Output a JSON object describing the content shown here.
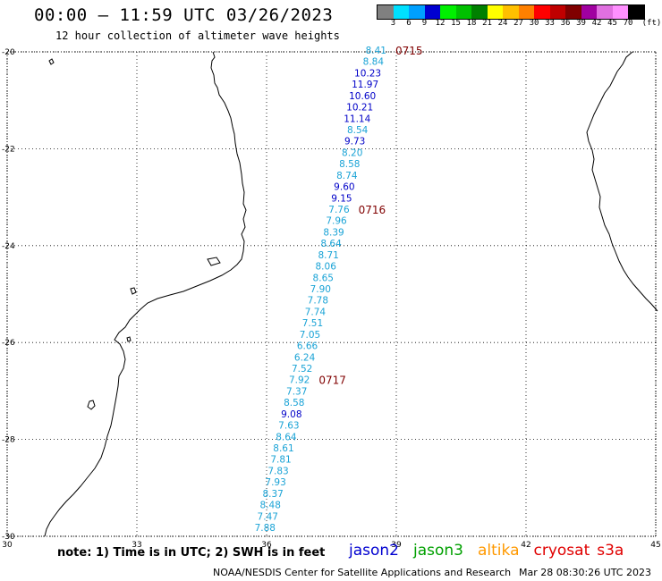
{
  "header": {
    "title": "00:00 – 11:59 UTC 03/26/2023",
    "subtitle": "12 hour collection of altimeter wave heights"
  },
  "legend": {
    "unit": "(ft)",
    "bins": [
      {
        "label": "3",
        "color": "#808080"
      },
      {
        "label": "6",
        "color": "#00e0ff"
      },
      {
        "label": "9",
        "color": "#00a0ff"
      },
      {
        "label": "12",
        "color": "#0000d0"
      },
      {
        "label": "15",
        "color": "#00f000"
      },
      {
        "label": "18",
        "color": "#00c000"
      },
      {
        "label": "21",
        "color": "#008000"
      },
      {
        "label": "24",
        "color": "#ffff00"
      },
      {
        "label": "27",
        "color": "#ffc000"
      },
      {
        "label": "30",
        "color": "#ff8000"
      },
      {
        "label": "33",
        "color": "#ff0000"
      },
      {
        "label": "36",
        "color": "#c00000"
      },
      {
        "label": "39",
        "color": "#800000"
      },
      {
        "label": "42",
        "color": "#a000a0"
      },
      {
        "label": "45",
        "color": "#e070e0"
      },
      {
        "label": "70",
        "color": "#ff90ff"
      },
      {
        "label": "",
        "color": "#000000"
      }
    ]
  },
  "map": {
    "lon_range": [
      30,
      45
    ],
    "lat_range": [
      -30,
      -20
    ],
    "x_ticks": [
      "30",
      "33",
      "36",
      "39",
      "42",
      "45"
    ],
    "y_ticks": [
      "-20",
      "-22",
      "-24",
      "-26",
      "-28",
      "-30"
    ],
    "grid": "dotted"
  },
  "track": {
    "color_light": "#1aa3d6",
    "color_dark": "#0000c8",
    "time_color": "#800000",
    "times": [
      {
        "label": "0715",
        "row": 0
      },
      {
        "label": "0716",
        "row": 14
      },
      {
        "label": "0717",
        "row": 29
      }
    ],
    "readings": [
      {
        "v": "8.41",
        "dark": false
      },
      {
        "v": "8.84",
        "dark": false
      },
      {
        "v": "10.23",
        "dark": true
      },
      {
        "v": "11.97",
        "dark": true
      },
      {
        "v": "10.60",
        "dark": true
      },
      {
        "v": "10.21",
        "dark": true
      },
      {
        "v": "11.14",
        "dark": true
      },
      {
        "v": "8.54",
        "dark": false
      },
      {
        "v": "9.73",
        "dark": true
      },
      {
        "v": "8.20",
        "dark": false
      },
      {
        "v": "8.58",
        "dark": false
      },
      {
        "v": "8.74",
        "dark": false
      },
      {
        "v": "9.60",
        "dark": true
      },
      {
        "v": "9.15",
        "dark": true
      },
      {
        "v": "7.76",
        "dark": false
      },
      {
        "v": "7.96",
        "dark": false
      },
      {
        "v": "8.39",
        "dark": false
      },
      {
        "v": "8.64",
        "dark": false
      },
      {
        "v": "8.71",
        "dark": false
      },
      {
        "v": "8.06",
        "dark": false
      },
      {
        "v": "8.65",
        "dark": false
      },
      {
        "v": "7.90",
        "dark": false
      },
      {
        "v": "7.78",
        "dark": false
      },
      {
        "v": "7.74",
        "dark": false
      },
      {
        "v": "7.51",
        "dark": false
      },
      {
        "v": "7.05",
        "dark": false
      },
      {
        "v": "6.66",
        "dark": false
      },
      {
        "v": "6.24",
        "dark": false
      },
      {
        "v": "7.52",
        "dark": false
      },
      {
        "v": "7.92",
        "dark": false
      },
      {
        "v": "7.37",
        "dark": false
      },
      {
        "v": "8.58",
        "dark": false
      },
      {
        "v": "9.08",
        "dark": true
      },
      {
        "v": "7.63",
        "dark": false
      },
      {
        "v": "8.64",
        "dark": false
      },
      {
        "v": "8.61",
        "dark": false
      },
      {
        "v": "7.81",
        "dark": false
      },
      {
        "v": "7.83",
        "dark": false
      },
      {
        "v": "7.93",
        "dark": false
      },
      {
        "v": "8.37",
        "dark": false
      },
      {
        "v": "8.48",
        "dark": false
      },
      {
        "v": "7.47",
        "dark": false
      },
      {
        "v": "7.88",
        "dark": false
      }
    ]
  },
  "footer": {
    "note": "note: 1) Time is in UTC; 2) SWH is in feet",
    "satellites": [
      {
        "name": "jason2",
        "color": "#0000d0"
      },
      {
        "name": "jason3",
        "color": "#00a000"
      },
      {
        "name": "altika",
        "color": "#ff9900"
      },
      {
        "name": "cryosat",
        "color": "#e00000"
      },
      {
        "name": "s3a",
        "color": "#e00000"
      }
    ],
    "credit": "NOAA/NESDIS Center for Satellite Applications and Research",
    "timestamp": "Mar 28 08:30:26 UTC 2023"
  }
}
